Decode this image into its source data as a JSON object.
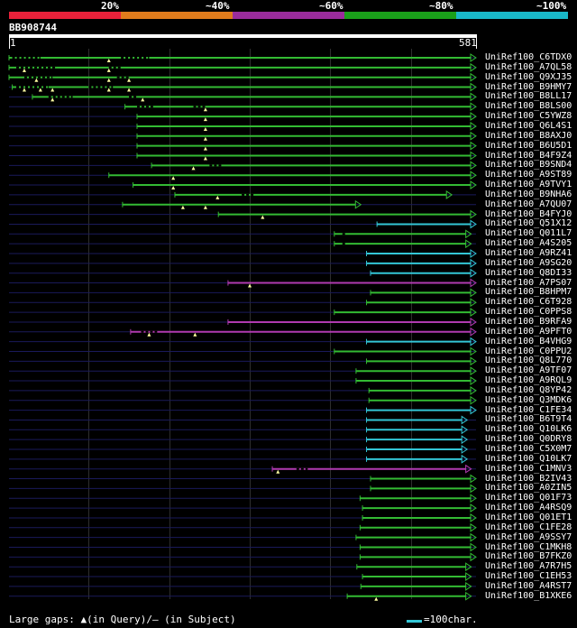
{
  "legend": {
    "labels": [
      "20%",
      "~40%",
      "~60%",
      "~80%",
      "~100%"
    ],
    "colors": [
      "#e8213a",
      "#e07c1c",
      "#9a2c9c",
      "#1aa01a",
      "#19b8c8"
    ]
  },
  "query": {
    "title": "BB908744",
    "start": "1",
    "end": "581",
    "length": 581
  },
  "hits": [
    {
      "name": "UniRef100_C6TDX0",
      "start": 1,
      "end": 581,
      "color": "#33bb33",
      "arrow": "open",
      "gaps": [
        [
          5,
          40
        ],
        [
          140,
          175
        ]
      ],
      "markers": [
        125
      ]
    },
    {
      "name": "UniRef100_A7QL58",
      "start": 1,
      "end": 581,
      "color": "#33bb33",
      "arrow": "open",
      "gaps": [
        [
          10,
          60
        ],
        [
          125,
          140
        ]
      ],
      "markers": [
        20,
        125
      ]
    },
    {
      "name": "UniRef100_Q9XJ35",
      "start": 1,
      "end": 581,
      "color": "#33bb33",
      "arrow": "open",
      "gaps": [
        [
          20,
          55
        ],
        [
          135,
          150
        ]
      ],
      "markers": [
        35,
        125,
        150
      ]
    },
    {
      "name": "UniRef100_B9HMY7",
      "start": 5,
      "end": 581,
      "color": "#33bb33",
      "arrow": "open",
      "gaps": [
        [
          10,
          50
        ],
        [
          100,
          130
        ]
      ],
      "markers": [
        20,
        40,
        55,
        125,
        150
      ]
    },
    {
      "name": "UniRef100_B8LL17",
      "start": 30,
      "end": 581,
      "color": "#33bb33",
      "arrow": "open",
      "gaps": [
        [
          50,
          80
        ],
        [
          150,
          160
        ]
      ],
      "markers": [
        55,
        167
      ]
    },
    {
      "name": "UniRef100_B8LS00",
      "start": 145,
      "end": 581,
      "color": "#33bb33",
      "arrow": "open",
      "gaps": [
        [
          160,
          180
        ],
        [
          230,
          245
        ]
      ],
      "markers": [
        245
      ]
    },
    {
      "name": "UniRef100_C5YWZ8",
      "start": 160,
      "end": 581,
      "color": "#33bb33",
      "arrow": "open",
      "gaps": [],
      "markers": [
        245
      ]
    },
    {
      "name": "UniRef100_Q6L4S1",
      "start": 160,
      "end": 581,
      "color": "#33bb33",
      "arrow": "open",
      "gaps": [],
      "markers": [
        245
      ]
    },
    {
      "name": "UniRef100_B8AXJ0",
      "start": 160,
      "end": 581,
      "color": "#33bb33",
      "arrow": "open",
      "gaps": [],
      "markers": [
        245
      ]
    },
    {
      "name": "UniRef100_B6U5D1",
      "start": 160,
      "end": 581,
      "color": "#33bb33",
      "arrow": "open",
      "gaps": [],
      "markers": [
        245
      ]
    },
    {
      "name": "UniRef100_B4F9Z4",
      "start": 160,
      "end": 581,
      "color": "#33bb33",
      "arrow": "open",
      "gaps": [],
      "markers": [
        245
      ]
    },
    {
      "name": "UniRef100_B9SND4",
      "start": 178,
      "end": 581,
      "color": "#33bb33",
      "arrow": "open",
      "gaps": [
        [
          250,
          265
        ]
      ],
      "markers": [
        230
      ]
    },
    {
      "name": "UniRef100_A9ST89",
      "start": 125,
      "end": 581,
      "color": "#33bb33",
      "arrow": "open",
      "gaps": [],
      "markers": [
        205
      ]
    },
    {
      "name": "UniRef100_A9TVY1",
      "start": 155,
      "end": 581,
      "color": "#33bb33",
      "arrow": "open",
      "gaps": [],
      "markers": [
        205
      ]
    },
    {
      "name": "UniRef100_B9NHA6",
      "start": 207,
      "end": 551,
      "color": "#33bb33",
      "arrow": "open",
      "gaps": [
        [
          290,
          305
        ]
      ],
      "markers": [
        260
      ]
    },
    {
      "name": "UniRef100_A7QU07",
      "start": 142,
      "end": 438,
      "color": "#33bb33",
      "arrow": "open",
      "gaps": [],
      "markers": [
        217,
        245
      ]
    },
    {
      "name": "UniRef100_B4FYJ0",
      "start": 261,
      "end": 581,
      "color": "#33bb33",
      "arrow": "open",
      "gaps": [],
      "markers": [
        316
      ]
    },
    {
      "name": "UniRef100_Q51X12",
      "start": 458,
      "end": 581,
      "color": "#33c6d6",
      "arrow": "open",
      "gaps": [],
      "markers": []
    },
    {
      "name": "UniRef100_Q011L7",
      "start": 405,
      "end": 575,
      "color": "#33bb33",
      "arrow": "open",
      "gaps": [
        [
          415,
          420
        ]
      ],
      "markers": []
    },
    {
      "name": "UniRef100_A4S205",
      "start": 405,
      "end": 575,
      "color": "#33bb33",
      "arrow": "open",
      "gaps": [
        [
          415,
          420
        ]
      ],
      "markers": []
    },
    {
      "name": "UniRef100_A9RZ41",
      "start": 445,
      "end": 581,
      "color": "#33c6d6",
      "arrow": "open",
      "gaps": [],
      "markers": []
    },
    {
      "name": "UniRef100_A9SG20",
      "start": 445,
      "end": 581,
      "color": "#33c6d6",
      "arrow": "open",
      "gaps": [],
      "markers": []
    },
    {
      "name": "UniRef100_Q8DI33",
      "start": 450,
      "end": 581,
      "color": "#33c6d6",
      "arrow": "open",
      "gaps": [],
      "markers": []
    },
    {
      "name": "UniRef100_A7PS07",
      "start": 273,
      "end": 581,
      "color": "#b03ab0",
      "arrow": "open",
      "gaps": [],
      "markers": [
        300
      ]
    },
    {
      "name": "UniRef100_B8HPM7",
      "start": 450,
      "end": 581,
      "color": "#33bb33",
      "arrow": "open",
      "gaps": [],
      "markers": []
    },
    {
      "name": "UniRef100_C6T928",
      "start": 445,
      "end": 581,
      "color": "#33bb33",
      "arrow": "open",
      "gaps": [],
      "markers": []
    },
    {
      "name": "UniRef100_C0PPS8",
      "start": 405,
      "end": 581,
      "color": "#33bb33",
      "arrow": "open",
      "gaps": [],
      "markers": []
    },
    {
      "name": "UniRef100_B9RFA9",
      "start": 273,
      "end": 581,
      "color": "#b03ab0",
      "arrow": "open",
      "gaps": [],
      "markers": []
    },
    {
      "name": "UniRef100_A9PFT0",
      "start": 152,
      "end": 581,
      "color": "#b03ab0",
      "arrow": "open",
      "gaps": [
        [
          165,
          185
        ]
      ],
      "markers": [
        175,
        232
      ]
    },
    {
      "name": "UniRef100_B4VHG9",
      "start": 445,
      "end": 581,
      "color": "#33c6d6",
      "arrow": "open",
      "gaps": [],
      "markers": []
    },
    {
      "name": "UniRef100_C0PPU2",
      "start": 405,
      "end": 581,
      "color": "#33bb33",
      "arrow": "open",
      "gaps": [],
      "markers": []
    },
    {
      "name": "UniRef100_Q8L770",
      "start": 445,
      "end": 581,
      "color": "#33bb33",
      "arrow": "open",
      "gaps": [],
      "markers": []
    },
    {
      "name": "UniRef100_A9TF07",
      "start": 432,
      "end": 581,
      "color": "#33bb33",
      "arrow": "open",
      "gaps": [],
      "markers": []
    },
    {
      "name": "UniRef100_A9RQL9",
      "start": 432,
      "end": 581,
      "color": "#33bb33",
      "arrow": "open",
      "gaps": [],
      "markers": []
    },
    {
      "name": "UniRef100_Q8YP42",
      "start": 448,
      "end": 581,
      "color": "#33bb33",
      "arrow": "open",
      "gaps": [],
      "markers": []
    },
    {
      "name": "UniRef100_Q3MDK6",
      "start": 448,
      "end": 581,
      "color": "#33bb33",
      "arrow": "open",
      "gaps": [],
      "markers": []
    },
    {
      "name": "UniRef100_C1FE34",
      "start": 445,
      "end": 581,
      "color": "#33c6d6",
      "arrow": "open",
      "gaps": [],
      "markers": []
    },
    {
      "name": "UniRef100_B6T9T4",
      "start": 445,
      "end": 570,
      "color": "#33c6d6",
      "arrow": "open",
      "gaps": [],
      "markers": []
    },
    {
      "name": "UniRef100_Q10LK6",
      "start": 445,
      "end": 570,
      "color": "#33c6d6",
      "arrow": "open",
      "gaps": [],
      "markers": []
    },
    {
      "name": "UniRef100_Q0DRY8",
      "start": 445,
      "end": 570,
      "color": "#33c6d6",
      "arrow": "open",
      "gaps": [],
      "markers": []
    },
    {
      "name": "UniRef100_C5X0M7",
      "start": 445,
      "end": 570,
      "color": "#33c6d6",
      "arrow": "open",
      "gaps": [],
      "markers": []
    },
    {
      "name": "UniRef100_Q10LK7",
      "start": 445,
      "end": 570,
      "color": "#33c6d6",
      "arrow": "open",
      "gaps": [],
      "markers": []
    },
    {
      "name": "UniRef100_C1MNV3",
      "start": 328,
      "end": 575,
      "color": "#b03ab0",
      "arrow": "open",
      "gaps": [
        [
          358,
          372
        ]
      ],
      "markers": [
        335
      ]
    },
    {
      "name": "UniRef100_B2IV43",
      "start": 450,
      "end": 581,
      "color": "#33bb33",
      "arrow": "open",
      "gaps": [],
      "markers": []
    },
    {
      "name": "UniRef100_A0ZIN5",
      "start": 450,
      "end": 581,
      "color": "#33bb33",
      "arrow": "open",
      "gaps": [],
      "markers": []
    },
    {
      "name": "UniRef100_Q01F73",
      "start": 437,
      "end": 581,
      "color": "#33bb33",
      "arrow": "open",
      "gaps": [],
      "markers": []
    },
    {
      "name": "UniRef100_A4RSQ9",
      "start": 440,
      "end": 581,
      "color": "#33bb33",
      "arrow": "open",
      "gaps": [],
      "markers": []
    },
    {
      "name": "UniRef100_Q01ET1",
      "start": 440,
      "end": 581,
      "color": "#33bb33",
      "arrow": "open",
      "gaps": [],
      "markers": []
    },
    {
      "name": "UniRef100_C1FE28",
      "start": 437,
      "end": 581,
      "color": "#33bb33",
      "arrow": "open",
      "gaps": [],
      "markers": []
    },
    {
      "name": "UniRef100_A9SSY7",
      "start": 432,
      "end": 581,
      "color": "#33bb33",
      "arrow": "open",
      "gaps": [],
      "markers": []
    },
    {
      "name": "UniRef100_C1MKH8",
      "start": 437,
      "end": 581,
      "color": "#33bb33",
      "arrow": "open",
      "gaps": [],
      "markers": []
    },
    {
      "name": "UniRef100_B7FKZ0",
      "start": 437,
      "end": 581,
      "color": "#33bb33",
      "arrow": "open",
      "gaps": [],
      "markers": []
    },
    {
      "name": "UniRef100_A7R7H5",
      "start": 433,
      "end": 575,
      "color": "#33bb33",
      "arrow": "open",
      "gaps": [],
      "markers": []
    },
    {
      "name": "UniRef100_C1EH53",
      "start": 440,
      "end": 575,
      "color": "#33bb33",
      "arrow": "open",
      "gaps": [],
      "markers": []
    },
    {
      "name": "UniRef100_A4RST7",
      "start": 438,
      "end": 575,
      "color": "#33bb33",
      "arrow": "open",
      "gaps": [],
      "markers": []
    },
    {
      "name": "UniRef100_B1XKE6",
      "start": 421,
      "end": 575,
      "color": "#33bb33",
      "arrow": "open",
      "gaps": [],
      "markers": [
        457
      ]
    }
  ],
  "footer": {
    "note": "Large gaps: ▲(in Query)/– (in Subject)",
    "scale": "=100char."
  }
}
